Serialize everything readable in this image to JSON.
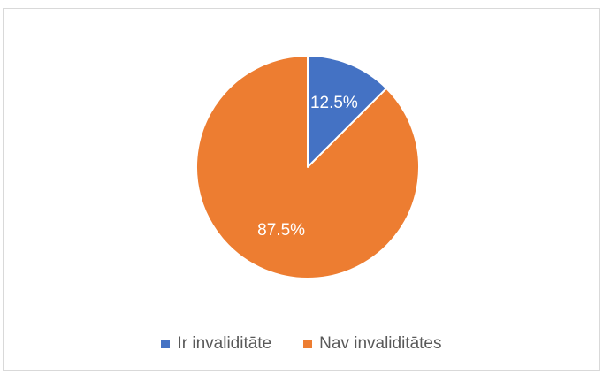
{
  "chart_data": {
    "type": "pie",
    "categories": [
      "Ir invaliditāte",
      "Nav invaliditātes"
    ],
    "values": [
      12.5,
      87.5
    ],
    "data_labels": [
      "12.5%",
      "87.5%"
    ],
    "colors": [
      "#4472c4",
      "#ed7d31"
    ],
    "start_angle_deg": 0,
    "direction": "clockwise",
    "legend_position": "bottom"
  }
}
